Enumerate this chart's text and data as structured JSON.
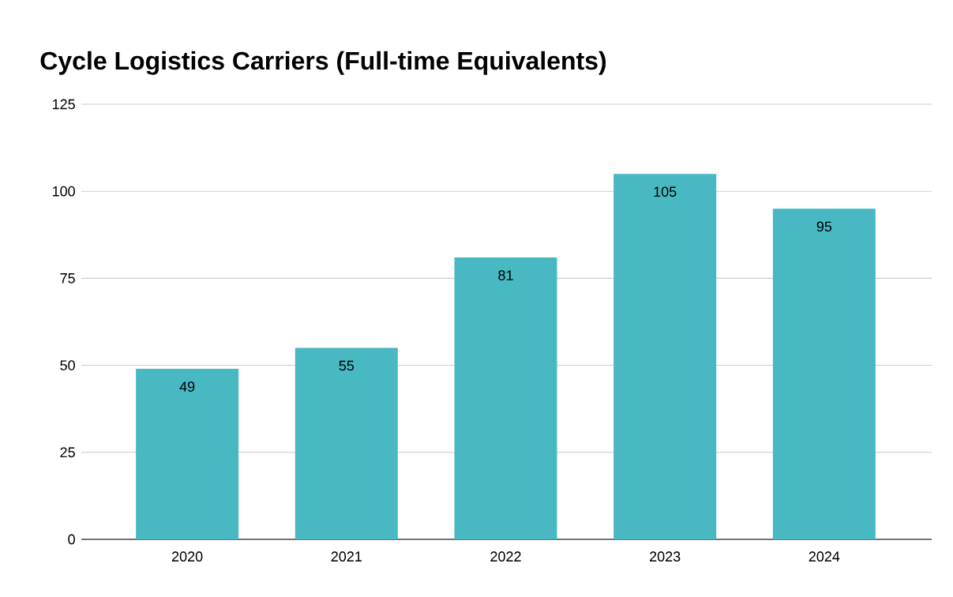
{
  "chart_data": {
    "type": "bar",
    "title": "Cycle Logistics Carriers (Full-time Equivalents)",
    "categories": [
      "2020",
      "2021",
      "2022",
      "2023",
      "2024"
    ],
    "values": [
      49,
      55,
      81,
      105,
      95
    ],
    "color": "#48b8c2",
    "ylim": [
      0,
      125
    ],
    "yticks": [
      0,
      25,
      50,
      75,
      100,
      125
    ],
    "grid": "y",
    "data_labels": true
  }
}
